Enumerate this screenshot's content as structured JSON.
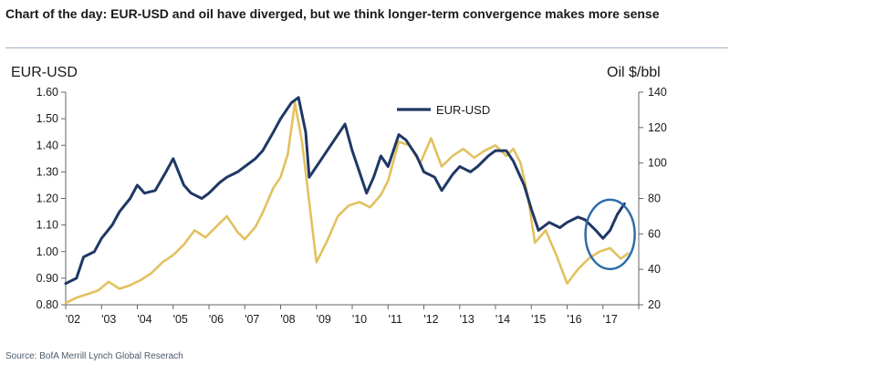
{
  "header": {
    "title": "Chart of the day: EUR-USD and oil have diverged, but we think longer-term convergence makes more sense"
  },
  "footer": {
    "source": "Source: BofA Merrill Lynch Global Reserach"
  },
  "colors": {
    "eurusd": "#1f3864",
    "oil": "#e2c15f",
    "axis": "#666666",
    "highlight_circle": "#2e6ca8"
  },
  "chart_data": {
    "type": "line",
    "left_axis_title": "EUR-USD",
    "right_axis_title": "Oil $/bbl",
    "x_tick_labels": [
      "'02",
      "'03",
      "'04",
      "'05",
      "'06",
      "'07",
      "'08",
      "'09",
      "'10",
      "'11",
      "'12",
      "'13",
      "'14",
      "'15",
      "'16",
      "'17"
    ],
    "xlim": [
      2002.0,
      2018.0
    ],
    "ylim_left": [
      0.8,
      1.6
    ],
    "y_ticks_left": [
      "0.80",
      "0.90",
      "1.00",
      "1.10",
      "1.20",
      "1.30",
      "1.40",
      "1.50",
      "1.60"
    ],
    "ylim_right": [
      20,
      140
    ],
    "y_ticks_right": [
      "20",
      "40",
      "60",
      "80",
      "100",
      "120",
      "140"
    ],
    "legend_position": "top-center",
    "annotation": "circle highlighting 2017 divergence",
    "series": [
      {
        "name": "EUR-USD",
        "axis": "left",
        "color": "#1f3864",
        "x": [
          2002.0,
          2002.3,
          2002.5,
          2002.8,
          2003.0,
          2003.3,
          2003.5,
          2003.8,
          2004.0,
          2004.2,
          2004.5,
          2004.8,
          2005.0,
          2005.3,
          2005.5,
          2005.8,
          2006.0,
          2006.3,
          2006.5,
          2006.8,
          2007.0,
          2007.3,
          2007.5,
          2007.8,
          2008.0,
          2008.3,
          2008.5,
          2008.7,
          2008.8,
          2009.0,
          2009.2,
          2009.5,
          2009.8,
          2010.0,
          2010.2,
          2010.4,
          2010.6,
          2010.8,
          2011.0,
          2011.3,
          2011.5,
          2011.8,
          2012.0,
          2012.3,
          2012.5,
          2012.8,
          2013.0,
          2013.3,
          2013.5,
          2013.8,
          2014.0,
          2014.3,
          2014.5,
          2014.8,
          2015.0,
          2015.2,
          2015.5,
          2015.8,
          2016.0,
          2016.3,
          2016.5,
          2016.8,
          2017.0,
          2017.2,
          2017.4,
          2017.6
        ],
        "values": [
          0.88,
          0.9,
          0.98,
          1.0,
          1.05,
          1.1,
          1.15,
          1.2,
          1.25,
          1.22,
          1.23,
          1.3,
          1.35,
          1.25,
          1.22,
          1.2,
          1.22,
          1.26,
          1.28,
          1.3,
          1.32,
          1.35,
          1.38,
          1.45,
          1.5,
          1.56,
          1.58,
          1.45,
          1.28,
          1.32,
          1.36,
          1.42,
          1.48,
          1.38,
          1.3,
          1.22,
          1.28,
          1.36,
          1.32,
          1.44,
          1.42,
          1.36,
          1.3,
          1.28,
          1.23,
          1.29,
          1.32,
          1.3,
          1.32,
          1.36,
          1.38,
          1.38,
          1.34,
          1.25,
          1.16,
          1.08,
          1.11,
          1.09,
          1.11,
          1.13,
          1.12,
          1.08,
          1.05,
          1.08,
          1.14,
          1.18
        ]
      },
      {
        "name": "",
        "axis": "right",
        "color": "#e2c15f",
        "x": [
          2002.0,
          2002.3,
          2002.6,
          2002.9,
          2003.2,
          2003.5,
          2003.8,
          2004.1,
          2004.4,
          2004.7,
          2005.0,
          2005.3,
          2005.6,
          2005.9,
          2006.2,
          2006.5,
          2006.8,
          2007.0,
          2007.3,
          2007.5,
          2007.8,
          2008.0,
          2008.2,
          2008.4,
          2008.6,
          2008.8,
          2009.0,
          2009.3,
          2009.6,
          2009.9,
          2010.2,
          2010.5,
          2010.8,
          2011.0,
          2011.3,
          2011.6,
          2011.9,
          2012.2,
          2012.5,
          2012.8,
          2013.1,
          2013.4,
          2013.7,
          2014.0,
          2014.3,
          2014.5,
          2014.7,
          2014.9,
          2015.1,
          2015.4,
          2015.7,
          2016.0,
          2016.3,
          2016.6,
          2016.9,
          2017.2,
          2017.5,
          2017.7
        ],
        "values": [
          21,
          24,
          26,
          28,
          33,
          29,
          31,
          34,
          38,
          44,
          48,
          54,
          62,
          58,
          64,
          70,
          61,
          57,
          64,
          72,
          86,
          92,
          105,
          134,
          112,
          78,
          44,
          56,
          70,
          76,
          78,
          75,
          82,
          90,
          112,
          110,
          100,
          114,
          98,
          104,
          108,
          103,
          107,
          110,
          104,
          108,
          100,
          82,
          55,
          62,
          48,
          32,
          40,
          46,
          50,
          52,
          46,
          49
        ]
      }
    ]
  }
}
